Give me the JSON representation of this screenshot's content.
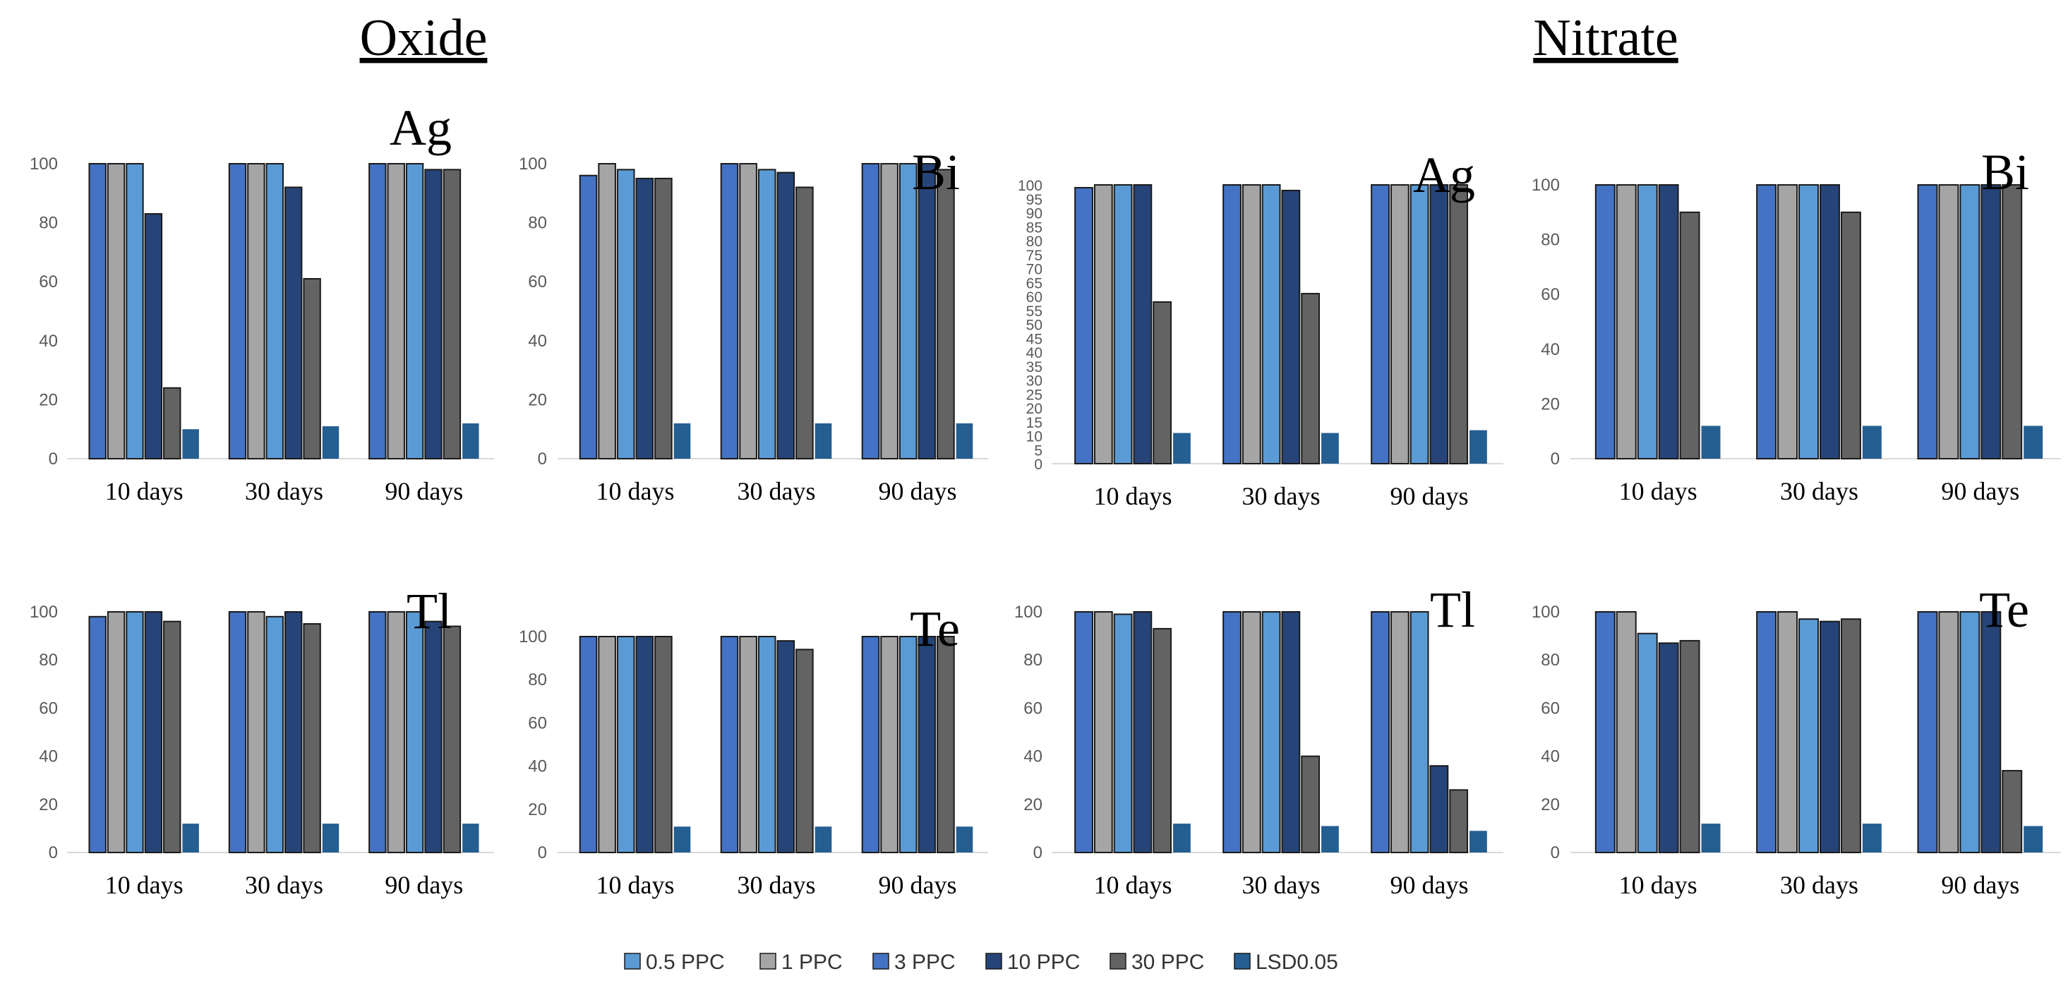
{
  "titles": {
    "oxide": "Oxide",
    "nitrate": "Nitrate"
  },
  "legend": [
    {
      "label": "0.5 PPC",
      "color": "#5b9bd5"
    },
    {
      "label": "1 PPC",
      "color": "#a5a5a5"
    },
    {
      "label": "3 PPC",
      "color": "#4472c4"
    },
    {
      "label": "10 PPC",
      "color": "#264478"
    },
    {
      "label": "30 PPC",
      "color": "#636363"
    },
    {
      "label": "LSD0.05",
      "color": "#255e91"
    }
  ],
  "chart_data": [
    {
      "type": "bar",
      "group": "Oxide",
      "title": "Ag",
      "categories": [
        "10 days",
        "30 days",
        "90 days"
      ],
      "ylim": [
        0,
        100
      ],
      "yticks": [
        0,
        20,
        40,
        60,
        80,
        100
      ],
      "series_colors": [
        "#4472c4",
        "#a5a5a5",
        "#5b9bd5",
        "#264478",
        "#636363",
        "#255e91"
      ],
      "values": [
        [
          100,
          100,
          100,
          83,
          24,
          10
        ],
        [
          100,
          100,
          100,
          92,
          61,
          11
        ],
        [
          100,
          100,
          100,
          98,
          98,
          12
        ]
      ]
    },
    {
      "type": "bar",
      "group": "Oxide",
      "title": "Bi",
      "categories": [
        "10 days",
        "30 days",
        "90 days"
      ],
      "ylim": [
        0,
        100
      ],
      "yticks": [
        0,
        20,
        40,
        60,
        80,
        100
      ],
      "series_colors": [
        "#4472c4",
        "#a5a5a5",
        "#5b9bd5",
        "#264478",
        "#636363",
        "#255e91"
      ],
      "values": [
        [
          96,
          100,
          98,
          95,
          95,
          12
        ],
        [
          100,
          100,
          98,
          97,
          92,
          12
        ],
        [
          100,
          100,
          100,
          100,
          98,
          12
        ]
      ]
    },
    {
      "type": "bar",
      "group": "Nitrate",
      "title": "Ag",
      "categories": [
        "10 days",
        "30 days",
        "90 days"
      ],
      "ylim": [
        0,
        100
      ],
      "yticks": [
        0,
        5,
        10,
        15,
        20,
        25,
        30,
        35,
        40,
        45,
        50,
        55,
        60,
        65,
        70,
        75,
        80,
        85,
        90,
        95,
        100
      ],
      "series_colors": [
        "#4472c4",
        "#a5a5a5",
        "#5b9bd5",
        "#264478",
        "#636363",
        "#255e91"
      ],
      "values": [
        [
          99,
          100,
          100,
          100,
          58,
          11
        ],
        [
          100,
          100,
          100,
          98,
          61,
          11
        ],
        [
          100,
          100,
          100,
          100,
          100,
          12
        ]
      ]
    },
    {
      "type": "bar",
      "group": "Nitrate",
      "title": "Bi",
      "categories": [
        "10 days",
        "30 days",
        "90 days"
      ],
      "ylim": [
        0,
        100
      ],
      "yticks": [
        0,
        20,
        40,
        60,
        80,
        100
      ],
      "series_colors": [
        "#4472c4",
        "#a5a5a5",
        "#5b9bd5",
        "#264478",
        "#636363",
        "#255e91"
      ],
      "values": [
        [
          100,
          100,
          100,
          100,
          90,
          12
        ],
        [
          100,
          100,
          100,
          100,
          90,
          12
        ],
        [
          100,
          100,
          100,
          100,
          100,
          12
        ]
      ]
    },
    {
      "type": "bar",
      "group": "Oxide",
      "title": "Tl",
      "categories": [
        "10 days",
        "30 days",
        "90 days"
      ],
      "ylim": [
        0,
        100
      ],
      "yticks": [
        0,
        20,
        40,
        60,
        80,
        100
      ],
      "series_colors": [
        "#4472c4",
        "#a5a5a5",
        "#5b9bd5",
        "#264478",
        "#636363",
        "#255e91"
      ],
      "values": [
        [
          98,
          100,
          100,
          100,
          96,
          12
        ],
        [
          100,
          100,
          98,
          100,
          95,
          12
        ],
        [
          100,
          100,
          100,
          96,
          94,
          12
        ]
      ]
    },
    {
      "type": "bar",
      "group": "Oxide",
      "title": "Te",
      "categories": [
        "10 days",
        "30 days",
        "90 days"
      ],
      "ylim": [
        0,
        100
      ],
      "yticks": [
        0,
        20,
        40,
        60,
        80,
        100
      ],
      "series_colors": [
        "#4472c4",
        "#a5a5a5",
        "#5b9bd5",
        "#264478",
        "#636363",
        "#255e91"
      ],
      "values": [
        [
          100,
          100,
          100,
          100,
          100,
          12
        ],
        [
          100,
          100,
          100,
          98,
          94,
          12
        ],
        [
          100,
          100,
          100,
          100,
          100,
          12
        ]
      ]
    },
    {
      "type": "bar",
      "group": "Nitrate",
      "title": "Tl",
      "categories": [
        "10 days",
        "30 days",
        "90 days"
      ],
      "ylim": [
        0,
        100
      ],
      "yticks": [
        0,
        20,
        40,
        60,
        80,
        100
      ],
      "series_colors": [
        "#4472c4",
        "#a5a5a5",
        "#5b9bd5",
        "#264478",
        "#636363",
        "#255e91"
      ],
      "values": [
        [
          100,
          100,
          99,
          100,
          93,
          12
        ],
        [
          100,
          100,
          100,
          100,
          40,
          11
        ],
        [
          100,
          100,
          100,
          36,
          26,
          9
        ]
      ]
    },
    {
      "type": "bar",
      "group": "Nitrate",
      "title": "Te",
      "categories": [
        "10 days",
        "30 days",
        "90 days"
      ],
      "ylim": [
        0,
        100
      ],
      "yticks": [
        0,
        20,
        40,
        60,
        80,
        100
      ],
      "series_colors": [
        "#4472c4",
        "#a5a5a5",
        "#5b9bd5",
        "#264478",
        "#636363",
        "#255e91"
      ],
      "values": [
        [
          100,
          100,
          91,
          87,
          88,
          12
        ],
        [
          100,
          100,
          97,
          96,
          97,
          12
        ],
        [
          100,
          100,
          100,
          100,
          34,
          11
        ]
      ]
    }
  ]
}
